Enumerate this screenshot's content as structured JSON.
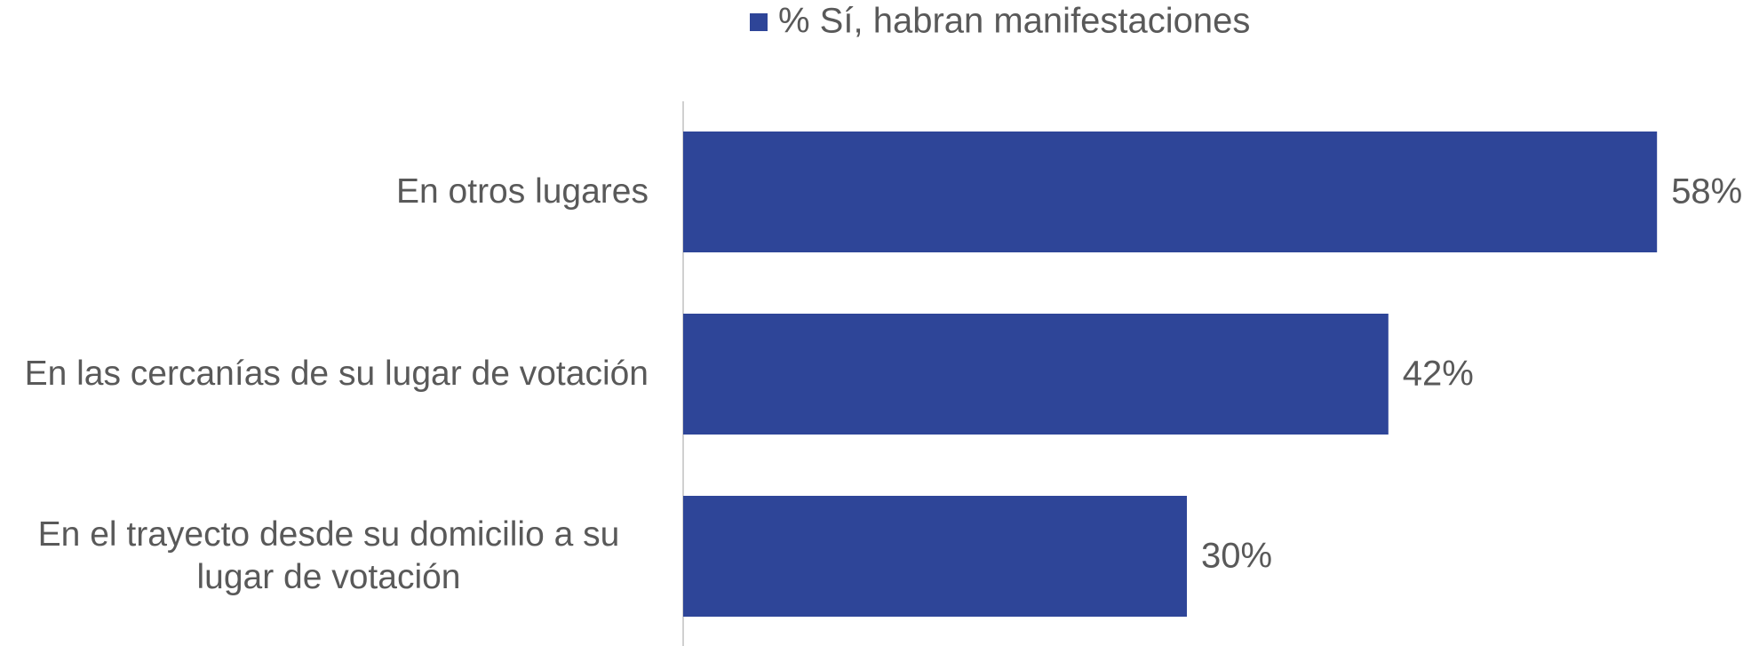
{
  "chart_data": {
    "type": "hbar",
    "legend": "% Sí, habran manifestaciones",
    "categories": [
      "En otros lugares",
      "En las cercanías de su lugar de votación",
      "En el trayecto desde su domicilio a su lugar de votación"
    ],
    "values": [
      58,
      42,
      30
    ],
    "value_labels": [
      "58%",
      "42%",
      "30%"
    ],
    "color": "#2E4598",
    "xlim": [
      0,
      60
    ]
  }
}
